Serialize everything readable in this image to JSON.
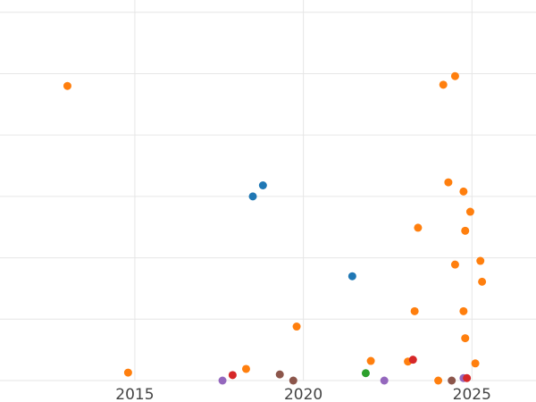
{
  "chart_data": {
    "type": "scatter",
    "title": "",
    "xlabel": "",
    "ylabel": "",
    "xlim": [
      2011,
      2026.9
    ],
    "ylim": [
      0,
      6.2
    ],
    "x_ticks": [
      2015,
      2020,
      2025
    ],
    "x_tick_labels": [
      "2015",
      "2020",
      "2025"
    ],
    "y_gridlines": [
      0,
      1,
      2,
      3,
      4,
      5,
      6
    ],
    "grid": true,
    "legend": "none",
    "colors": {
      "blue": "#1f77b4",
      "orange": "#ff7f0e",
      "green": "#2ca02c",
      "red": "#d62728",
      "purple": "#9467bd",
      "brown": "#8c564b"
    },
    "points": [
      {
        "x": 2013.0,
        "y": 4.8,
        "color": "orange"
      },
      {
        "x": 2014.8,
        "y": 0.13,
        "color": "orange"
      },
      {
        "x": 2017.6,
        "y": 0.0,
        "color": "purple"
      },
      {
        "x": 2017.9,
        "y": 0.09,
        "color": "red"
      },
      {
        "x": 2018.3,
        "y": 0.19,
        "color": "orange"
      },
      {
        "x": 2018.5,
        "y": 3.0,
        "color": "blue"
      },
      {
        "x": 2018.8,
        "y": 3.18,
        "color": "blue"
      },
      {
        "x": 2019.3,
        "y": 0.1,
        "color": "brown"
      },
      {
        "x": 2019.7,
        "y": 0.0,
        "color": "brown"
      },
      {
        "x": 2019.8,
        "y": 0.88,
        "color": "orange"
      },
      {
        "x": 2021.45,
        "y": 1.7,
        "color": "blue"
      },
      {
        "x": 2021.85,
        "y": 0.12,
        "color": "green"
      },
      {
        "x": 2022.0,
        "y": 0.32,
        "color": "orange"
      },
      {
        "x": 2022.4,
        "y": 0.0,
        "color": "purple"
      },
      {
        "x": 2023.1,
        "y": 0.31,
        "color": "orange"
      },
      {
        "x": 2023.25,
        "y": 0.34,
        "color": "red"
      },
      {
        "x": 2023.3,
        "y": 1.13,
        "color": "orange"
      },
      {
        "x": 2023.4,
        "y": 2.49,
        "color": "orange"
      },
      {
        "x": 2024.0,
        "y": 0.0,
        "color": "orange"
      },
      {
        "x": 2024.15,
        "y": 4.82,
        "color": "orange"
      },
      {
        "x": 2024.3,
        "y": 3.23,
        "color": "orange"
      },
      {
        "x": 2024.4,
        "y": 0.0,
        "color": "brown"
      },
      {
        "x": 2024.5,
        "y": 4.96,
        "color": "orange"
      },
      {
        "x": 2024.5,
        "y": 1.89,
        "color": "orange"
      },
      {
        "x": 2024.75,
        "y": 3.08,
        "color": "orange"
      },
      {
        "x": 2024.75,
        "y": 1.13,
        "color": "orange"
      },
      {
        "x": 2024.75,
        "y": 0.04,
        "color": "purple"
      },
      {
        "x": 2024.8,
        "y": 2.44,
        "color": "orange"
      },
      {
        "x": 2024.8,
        "y": 0.69,
        "color": "orange"
      },
      {
        "x": 2024.85,
        "y": 0.04,
        "color": "red"
      },
      {
        "x": 2024.95,
        "y": 2.75,
        "color": "orange"
      },
      {
        "x": 2025.1,
        "y": 0.28,
        "color": "orange"
      },
      {
        "x": 2025.25,
        "y": 1.95,
        "color": "orange"
      },
      {
        "x": 2025.3,
        "y": 1.61,
        "color": "orange"
      }
    ]
  }
}
